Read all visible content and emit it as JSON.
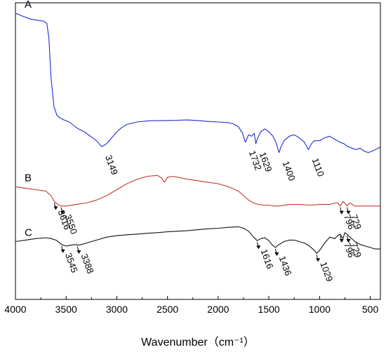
{
  "chart_data": {
    "type": "line",
    "title": "",
    "xlabel": "Wavenumber（cm⁻¹）",
    "ylabel": "",
    "xlim": [
      4000,
      400
    ],
    "xticks": [
      4000,
      3500,
      3000,
      2500,
      2000,
      1500,
      1000,
      500
    ],
    "xtick_labels": [
      "4000",
      "3500",
      "3000",
      "2500",
      "2000",
      "1500",
      "1000",
      "500"
    ],
    "y_axis_visible": false,
    "grid": false,
    "series": [
      {
        "name": "A",
        "color": "#1f2bd6",
        "x": [
          4000,
          3930,
          3850,
          3760,
          3720,
          3690,
          3670,
          3650,
          3620,
          3590,
          3560,
          3520,
          3470,
          3420,
          3380,
          3320,
          3260,
          3200,
          3149,
          3100,
          3050,
          3000,
          2950,
          2900,
          2800,
          2700,
          2600,
          2500,
          2400,
          2300,
          2200,
          2100,
          2000,
          1900,
          1850,
          1800,
          1760,
          1732,
          1700,
          1670,
          1645,
          1629,
          1610,
          1580,
          1540,
          1500,
          1460,
          1430,
          1400,
          1380,
          1350,
          1300,
          1250,
          1200,
          1150,
          1110,
          1080,
          1050,
          1000,
          950,
          900,
          850,
          800,
          760,
          720,
          680,
          640,
          600,
          560,
          520,
          480,
          450,
          420,
          400
        ],
        "y": [
          96.5,
          95.5,
          94.5,
          94.0,
          93.8,
          93.0,
          88.0,
          75.0,
          65.0,
          62.0,
          61.2,
          60.5,
          59.8,
          58.5,
          57.5,
          56.5,
          55.0,
          53.5,
          51.5,
          52.5,
          54.5,
          56.5,
          58.0,
          59.0,
          59.8,
          60.2,
          60.3,
          60.3,
          60.4,
          60.5,
          60.3,
          60.0,
          59.8,
          59.6,
          59.2,
          58.2,
          56.0,
          53.0,
          55.5,
          55.0,
          56.0,
          52.5,
          54.5,
          56.5,
          57.5,
          56.5,
          55.0,
          53.0,
          49.5,
          51.5,
          53.5,
          55.0,
          55.5,
          54.5,
          53.0,
          50.5,
          52.5,
          53.5,
          53.5,
          54.5,
          55.0,
          54.0,
          53.0,
          52.5,
          51.5,
          51.0,
          50.5,
          51.0,
          50.0,
          49.5,
          50.0,
          50.5,
          51.0,
          51.5
        ]
      },
      {
        "name": "B",
        "color": "#c0392b",
        "x": [
          4000,
          3900,
          3800,
          3700,
          3650,
          3616,
          3580,
          3550,
          3500,
          3400,
          3300,
          3200,
          3100,
          3000,
          2900,
          2800,
          2700,
          2600,
          2560,
          2530,
          2500,
          2450,
          2400,
          2300,
          2200,
          2100,
          2000,
          1900,
          1800,
          1750,
          1700,
          1650,
          1600,
          1550,
          1500,
          1450,
          1400,
          1300,
          1200,
          1100,
          1000,
          950,
          900,
          850,
          820,
          796,
          770,
          750,
          729,
          700,
          650,
          600,
          550,
          500,
          450,
          400
        ],
        "y": [
          38.0,
          37.5,
          37.0,
          36.5,
          35.0,
          33.0,
          32.0,
          31.5,
          31.5,
          32.0,
          32.5,
          33.5,
          35.0,
          37.0,
          39.0,
          40.5,
          41.5,
          41.8,
          41.0,
          39.5,
          41.2,
          41.5,
          41.2,
          40.5,
          40.0,
          39.5,
          39.0,
          38.0,
          36.5,
          35.0,
          33.5,
          32.5,
          32.0,
          31.8,
          31.8,
          31.5,
          31.5,
          32.0,
          32.0,
          31.8,
          32.0,
          32.0,
          32.0,
          32.5,
          32.5,
          31.5,
          33.0,
          32.5,
          31.5,
          32.5,
          31.5,
          31.5,
          31.5,
          31.5,
          31.5,
          31.5
        ]
      },
      {
        "name": "C",
        "color": "#111111",
        "x": [
          4000,
          3900,
          3800,
          3700,
          3650,
          3600,
          3545,
          3500,
          3450,
          3400,
          3388,
          3350,
          3300,
          3200,
          3100,
          3000,
          2900,
          2800,
          2700,
          2600,
          2500,
          2400,
          2300,
          2200,
          2100,
          2000,
          1900,
          1800,
          1750,
          1700,
          1650,
          1616,
          1580,
          1540,
          1500,
          1470,
          1436,
          1400,
          1350,
          1300,
          1250,
          1200,
          1150,
          1100,
          1050,
          1029,
          1000,
          950,
          900,
          850,
          820,
          796,
          770,
          750,
          729,
          700,
          650,
          600,
          550,
          500,
          450,
          400
        ],
        "y": [
          19.5,
          20.0,
          20.5,
          20.8,
          20.5,
          20.0,
          18.5,
          18.0,
          18.3,
          18.5,
          18.2,
          18.5,
          19.0,
          20.0,
          21.0,
          21.5,
          21.8,
          22.0,
          22.3,
          22.5,
          22.8,
          23.0,
          23.2,
          23.5,
          23.8,
          24.0,
          24.3,
          24.5,
          24.0,
          23.0,
          21.0,
          19.8,
          20.5,
          20.8,
          19.8,
          18.5,
          17.5,
          18.5,
          19.5,
          20.0,
          20.0,
          19.5,
          19.0,
          18.0,
          16.5,
          15.5,
          16.5,
          19.0,
          21.0,
          20.5,
          21.5,
          22.0,
          20.5,
          22.5,
          22.0,
          21.0,
          19.5,
          18.5,
          18.0,
          17.5,
          17.0,
          17.0
        ]
      }
    ],
    "annotations": [
      {
        "series": "A",
        "text": "3149"
      },
      {
        "series": "A",
        "text": "1732"
      },
      {
        "series": "A",
        "text": "1629"
      },
      {
        "series": "A",
        "text": "1400"
      },
      {
        "series": "A",
        "text": "1110"
      },
      {
        "series": "B",
        "text": "3616"
      },
      {
        "series": "B",
        "text": "3550"
      },
      {
        "series": "B",
        "text": "796"
      },
      {
        "series": "B",
        "text": "729"
      },
      {
        "series": "C",
        "text": "3545"
      },
      {
        "series": "C",
        "text": "3388"
      },
      {
        "series": "C",
        "text": "1616"
      },
      {
        "series": "C",
        "text": "1436"
      },
      {
        "series": "C",
        "text": "1029"
      },
      {
        "series": "C",
        "text": "796"
      },
      {
        "series": "C",
        "text": "729"
      }
    ]
  }
}
